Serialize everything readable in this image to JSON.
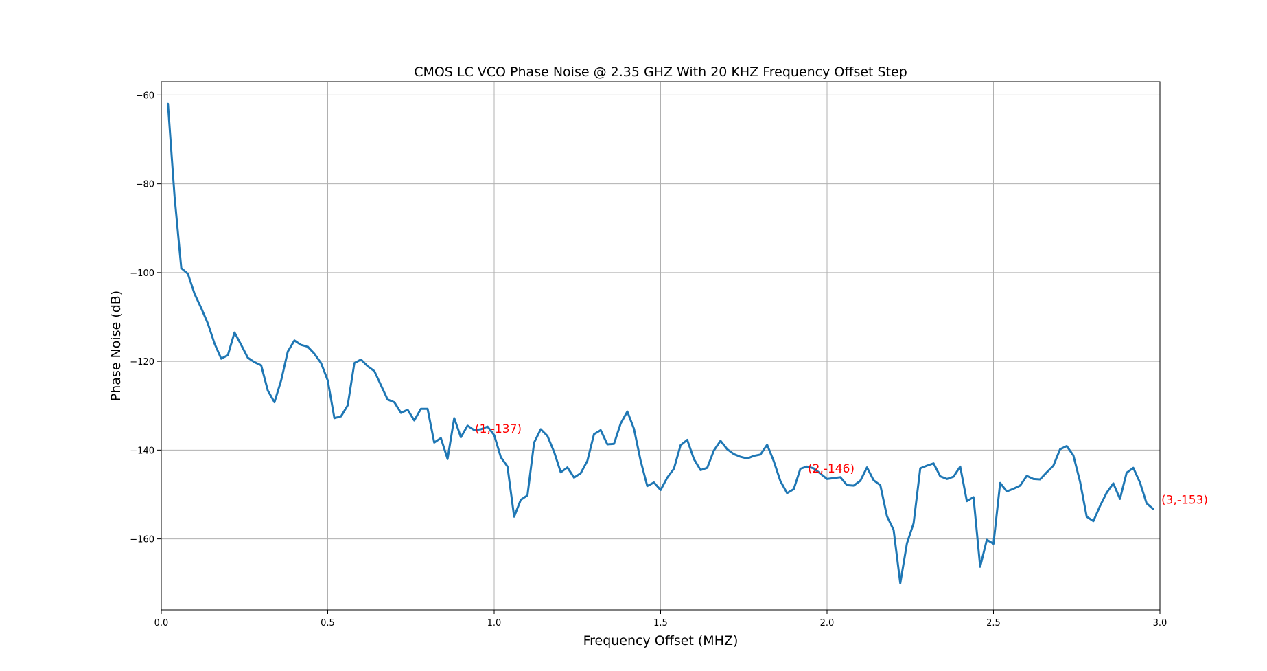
{
  "chart_data": {
    "type": "line",
    "title": "CMOS LC VCO Phase Noise @ 2.35 GHZ With 20 KHZ Frequency Offset Step",
    "xlabel": "Frequency Offset (MHZ)",
    "ylabel": "Phase Noise (dB)",
    "xlim": [
      0.0,
      3.0
    ],
    "ylim": [
      -176,
      -57
    ],
    "x_ticks": [
      0.0,
      0.5,
      1.0,
      1.5,
      2.0,
      2.5,
      3.0
    ],
    "x_tick_labels": [
      "0.0",
      "0.5",
      "1.0",
      "1.5",
      "2.0",
      "2.5",
      "3.0"
    ],
    "y_ticks": [
      -60,
      -80,
      -100,
      -120,
      -140,
      -160
    ],
    "y_tick_labels": [
      "−60",
      "−80",
      "−100",
      "−120",
      "−140",
      "−160"
    ],
    "grid": true,
    "line_color": "#1f77b4",
    "annotation_color": "#ff0000",
    "series": [
      {
        "x": [
          0.02,
          0.04,
          0.06,
          0.08,
          0.1,
          0.12,
          0.14,
          0.16,
          0.18,
          0.2,
          0.22,
          0.24,
          0.26,
          0.28,
          0.3,
          0.32,
          0.34,
          0.36,
          0.38,
          0.4,
          0.42,
          0.44,
          0.46,
          0.48,
          0.5,
          0.52,
          0.54,
          0.56,
          0.58,
          0.6,
          0.62,
          0.64,
          0.66,
          0.68,
          0.7,
          0.72,
          0.74,
          0.76,
          0.78,
          0.8,
          0.82,
          0.84,
          0.86,
          0.88,
          0.9,
          0.92,
          0.94,
          0.96,
          0.98,
          1.0,
          1.02,
          1.04,
          1.06,
          1.08,
          1.1,
          1.12,
          1.14,
          1.16,
          1.18,
          1.2,
          1.22,
          1.24,
          1.26,
          1.28,
          1.3,
          1.32,
          1.34,
          1.36,
          1.38,
          1.4,
          1.42,
          1.44,
          1.46,
          1.48,
          1.5,
          1.52,
          1.54,
          1.56,
          1.58,
          1.6,
          1.62,
          1.64,
          1.66,
          1.68,
          1.7,
          1.72,
          1.74,
          1.76,
          1.78,
          1.8,
          1.82,
          1.84,
          1.86,
          1.88,
          1.9,
          1.92,
          1.94,
          1.96,
          1.98,
          2.0,
          2.02,
          2.04,
          2.06,
          2.08,
          2.1,
          2.12,
          2.14,
          2.16,
          2.18,
          2.2,
          2.22,
          2.24,
          2.26,
          2.28,
          2.3,
          2.32,
          2.34,
          2.36,
          2.38,
          2.4,
          2.42,
          2.44,
          2.46,
          2.48,
          2.5,
          2.52,
          2.54,
          2.56,
          2.58,
          2.6,
          2.62,
          2.64,
          2.66,
          2.68,
          2.7,
          2.72,
          2.74,
          2.76,
          2.78,
          2.8,
          2.82,
          2.84,
          2.86,
          2.88,
          2.9,
          2.92,
          2.94,
          2.96,
          2.98
        ],
        "y": [
          -62,
          -83,
          -99,
          -100.3,
          -104.8,
          -108,
          -111.5,
          -116,
          -119.4,
          -118.6,
          -113.5,
          -116.3,
          -119.2,
          -120.2,
          -120.9,
          -126.6,
          -129.2,
          -124.3,
          -117.8,
          -115.3,
          -116.3,
          -116.7,
          -118.3,
          -120.4,
          -124.3,
          -132.8,
          -132.4,
          -129.9,
          -120.4,
          -119.6,
          -121.1,
          -122.2,
          -125.4,
          -128.6,
          -129.2,
          -131.6,
          -130.9,
          -133.3,
          -130.7,
          -130.7,
          -138.3,
          -137.3,
          -142,
          -132.8,
          -137.1,
          -134.5,
          -135.5,
          -135.3,
          -134.7,
          -136.6,
          -141.6,
          -143.7,
          -155,
          -151.2,
          -150.2,
          -138.3,
          -135.3,
          -136.8,
          -140.4,
          -145,
          -143.9,
          -146.2,
          -145.2,
          -142.4,
          -136.4,
          -135.5,
          -138.7,
          -138.6,
          -134,
          -131.3,
          -135.2,
          -142.4,
          -148.1,
          -147.3,
          -149,
          -146.2,
          -144.2,
          -138.9,
          -137.7,
          -142,
          -144.5,
          -144,
          -140.1,
          -137.9,
          -139.8,
          -140.9,
          -141.5,
          -141.9,
          -141.3,
          -141,
          -138.8,
          -142.5,
          -147,
          -149.7,
          -148.8,
          -144.2,
          -143.7,
          -144.1,
          -145.3,
          -146.5,
          -146.3,
          -146.1,
          -147.9,
          -148,
          -146.9,
          -143.9,
          -146.8,
          -147.9,
          -154.9,
          -158,
          -170,
          -161,
          -156.5,
          -144.1,
          -143.5,
          -143,
          -145.9,
          -146.5,
          -146,
          -143.7,
          -151.5,
          -150.6,
          -166.3,
          -160.2,
          -161.1,
          -147.4,
          -149.3,
          -148.7,
          -148,
          -145.8,
          -146.5,
          -146.6,
          -145,
          -143.5,
          -139.8,
          -139.1,
          -141.2,
          -147.1,
          -155,
          -156,
          -152.6,
          -149.6,
          -147.5,
          -151,
          -145.1,
          -144,
          -147.3,
          -152,
          -153.3
        ]
      }
    ],
    "annotations": [
      {
        "x": 1,
        "y": -137,
        "text": "(1,-137)"
      },
      {
        "x": 2,
        "y": -146,
        "text": "(2,-146)"
      },
      {
        "x": 3,
        "y": -153,
        "text": "(3,-153)"
      }
    ]
  }
}
